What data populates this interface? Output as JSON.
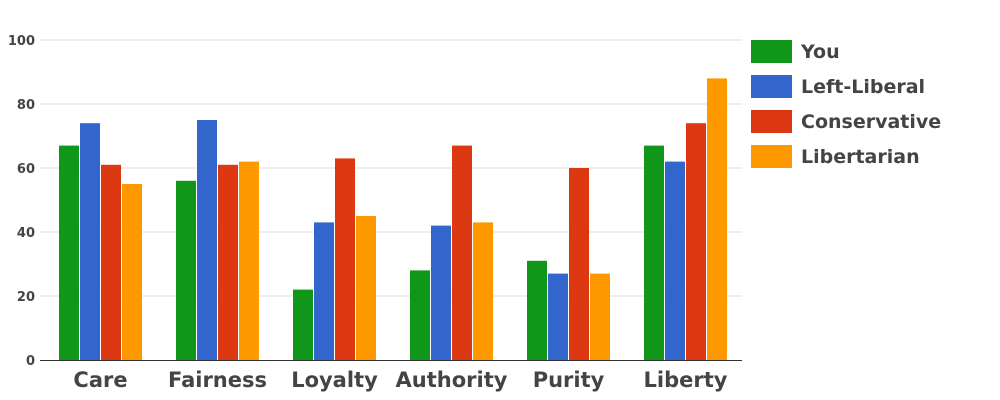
{
  "chart_data": {
    "type": "bar",
    "categories": [
      "Care",
      "Fairness",
      "Loyalty",
      "Authority",
      "Purity",
      "Liberty"
    ],
    "series": [
      {
        "name": "You",
        "color": "#109618",
        "values": [
          67,
          56,
          22,
          28,
          31,
          67
        ]
      },
      {
        "name": "Left-Liberal",
        "color": "#3366cc",
        "values": [
          74,
          75,
          43,
          42,
          27,
          62
        ]
      },
      {
        "name": "Conservative",
        "color": "#dc3912",
        "values": [
          61,
          61,
          63,
          67,
          60,
          74
        ]
      },
      {
        "name": "Libertarian",
        "color": "#ff9900",
        "values": [
          55,
          62,
          45,
          43,
          27,
          88
        ]
      }
    ],
    "yticks": [
      0,
      20,
      40,
      60,
      80,
      100
    ],
    "ylim": [
      0,
      100
    ],
    "grid": true,
    "legend_position": "right"
  }
}
